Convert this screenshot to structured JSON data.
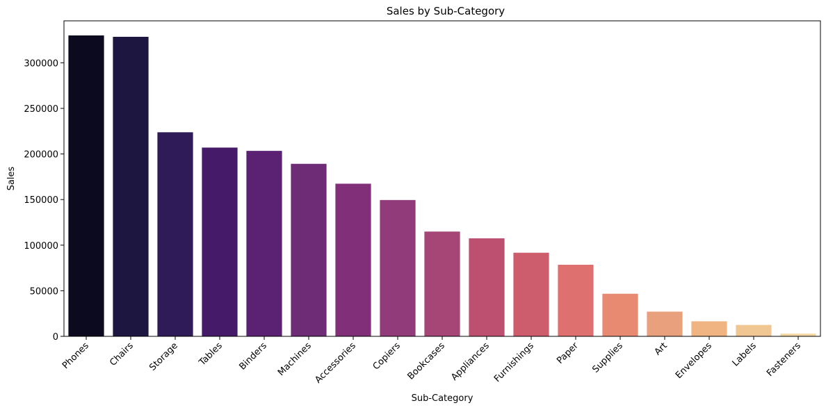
{
  "chart_data": {
    "type": "bar",
    "title": "Sales by Sub-Category",
    "xlabel": "Sub-Category",
    "ylabel": "Sales",
    "ylim": [
      0,
      346000
    ],
    "yticks": [
      0,
      50000,
      100000,
      150000,
      200000,
      250000,
      300000
    ],
    "grid": false,
    "legend": "none",
    "categories": [
      "Phones",
      "Chairs",
      "Storage",
      "Tables",
      "Binders",
      "Machines",
      "Accessories",
      "Copiers",
      "Bookcases",
      "Appliances",
      "Furnishings",
      "Paper",
      "Supplies",
      "Art",
      "Envelopes",
      "Labels",
      "Fasteners"
    ],
    "values": [
      330000,
      328500,
      223800,
      207000,
      203400,
      189200,
      167400,
      149500,
      114900,
      107500,
      91700,
      78500,
      46700,
      27100,
      16500,
      12500,
      3000
    ],
    "colors": [
      "#0c0a1f",
      "#1c1640",
      "#2f1b57",
      "#451a69",
      "#5b2172",
      "#6d2c75",
      "#812f78",
      "#913b7a",
      "#a54677",
      "#bd4f71",
      "#cd5d6d",
      "#de7170",
      "#e88a72",
      "#e8a17c",
      "#efb481",
      "#f0c693",
      "#f4d9a4"
    ]
  }
}
